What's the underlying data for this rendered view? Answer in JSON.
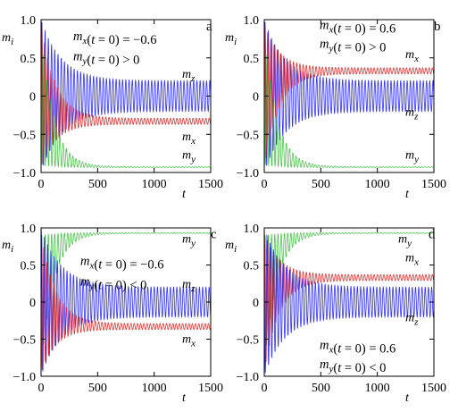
{
  "chart_data": [
    {
      "type": "line",
      "panel_letter": "a",
      "xlabel": "t",
      "ylabel": "m_i",
      "xlim": [
        0,
        1500
      ],
      "ylim": [
        -1.0,
        1.0
      ],
      "x_ticks": [
        "0",
        "500",
        "1000",
        "1500"
      ],
      "y_ticks": [
        "1.0",
        "0.5",
        "0",
        "−0.5",
        "−1.0"
      ],
      "annotations": [
        "m_x(t = 0) = −0.6",
        "m_y(t = 0) > 0"
      ],
      "series": [
        {
          "name": "m_z",
          "color": "#1a1aff",
          "initial_amplitude": 1.0,
          "decay_time": 180,
          "final_center": 0.0,
          "final_amplitude": 0.2
        },
        {
          "name": "m_x",
          "color": "#e01010",
          "initial_amplitude": 0.95,
          "decay_time": 130,
          "final_center": -0.33,
          "final_amplitude": 0.04
        },
        {
          "name": "m_y",
          "color": "#22bb22",
          "initial_amplitude": 0.9,
          "decay_time": 110,
          "final_center": -0.93,
          "final_amplitude": 0.005
        }
      ]
    },
    {
      "type": "line",
      "panel_letter": "b",
      "xlabel": "t",
      "ylabel": "m_i",
      "xlim": [
        0,
        1500
      ],
      "ylim": [
        -1.0,
        1.0
      ],
      "x_ticks": [
        "0",
        "500",
        "1000",
        "1500"
      ],
      "y_ticks": [
        "1.0",
        "0.5",
        "0",
        "−0.5",
        "−1.0"
      ],
      "annotations": [
        "m_x(t = 0) = 0.6",
        "m_y(t = 0) > 0"
      ],
      "series": [
        {
          "name": "m_z",
          "color": "#1a1aff",
          "initial_amplitude": 1.0,
          "decay_time": 180,
          "final_center": 0.0,
          "final_amplitude": 0.2
        },
        {
          "name": "m_x",
          "color": "#e01010",
          "initial_amplitude": 0.95,
          "decay_time": 130,
          "final_center": 0.33,
          "final_amplitude": 0.04
        },
        {
          "name": "m_y",
          "color": "#22bb22",
          "initial_amplitude": 0.9,
          "decay_time": 110,
          "final_center": -0.93,
          "final_amplitude": 0.005
        }
      ]
    },
    {
      "type": "line",
      "panel_letter": "c",
      "xlabel": "t",
      "ylabel": "m_i",
      "xlim": [
        0,
        1500
      ],
      "ylim": [
        -1.0,
        1.0
      ],
      "x_ticks": [
        "0",
        "500",
        "1000",
        "1500"
      ],
      "y_ticks": [
        "1.0",
        "0.5",
        "0",
        "−0.5",
        "−1.0"
      ],
      "annotations": [
        "m_x(t = 0) = −0.6",
        "m_y(t = 0) < 0"
      ],
      "series": [
        {
          "name": "m_y",
          "color": "#22bb22",
          "initial_amplitude": 0.9,
          "decay_time": 110,
          "final_center": 0.93,
          "final_amplitude": 0.005
        },
        {
          "name": "m_z",
          "color": "#1a1aff",
          "initial_amplitude": 1.0,
          "decay_time": 180,
          "final_center": 0.0,
          "final_amplitude": 0.2
        },
        {
          "name": "m_x",
          "color": "#e01010",
          "initial_amplitude": 0.95,
          "decay_time": 130,
          "final_center": -0.33,
          "final_amplitude": 0.04
        }
      ]
    },
    {
      "type": "line",
      "panel_letter": "d",
      "xlabel": "t",
      "ylabel": "m_i",
      "xlim": [
        0,
        1500
      ],
      "ylim": [
        -1.0,
        1.0
      ],
      "x_ticks": [
        "0",
        "500",
        "1000",
        "1500"
      ],
      "y_ticks": [
        "1.0",
        "0.5",
        "0",
        "−0.5",
        "−1.0"
      ],
      "annotations": [
        "m_x(t = 0) = 0.6",
        "m_y(t = 0) < 0"
      ],
      "series": [
        {
          "name": "m_y",
          "color": "#22bb22",
          "initial_amplitude": 0.9,
          "decay_time": 110,
          "final_center": 0.93,
          "final_amplitude": 0.005
        },
        {
          "name": "m_x",
          "color": "#e01010",
          "initial_amplitude": 0.95,
          "decay_time": 130,
          "final_center": 0.33,
          "final_amplitude": 0.04
        },
        {
          "name": "m_z",
          "color": "#1a1aff",
          "initial_amplitude": 1.0,
          "decay_time": 180,
          "final_center": 0.0,
          "final_amplitude": 0.2
        }
      ]
    }
  ]
}
